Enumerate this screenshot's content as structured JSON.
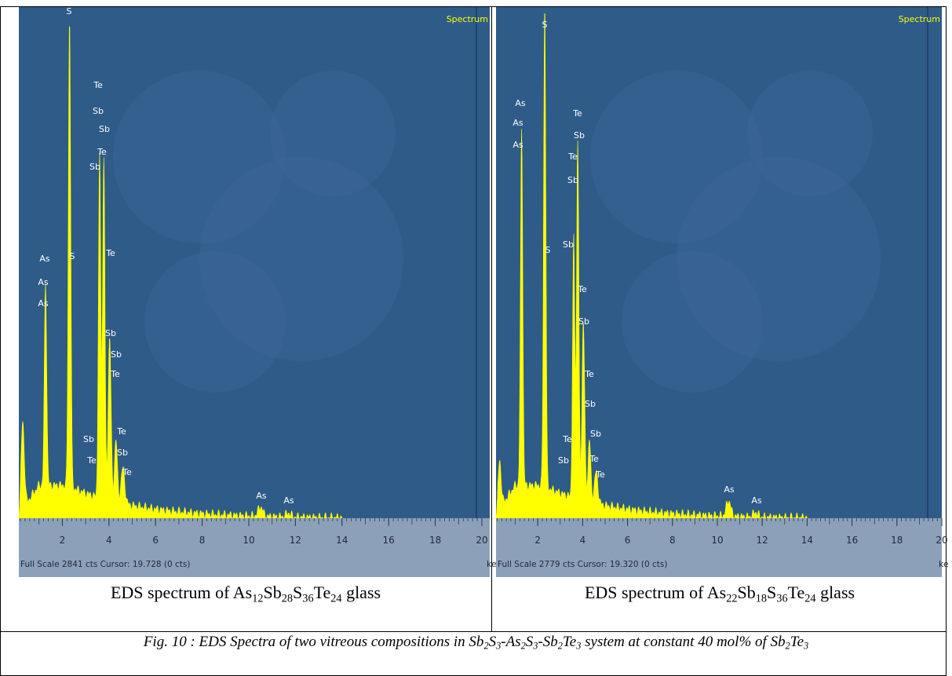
{
  "panels": [
    {
      "spectrum_label": "Spectrum",
      "x_ticks": [
        2,
        4,
        6,
        8,
        10,
        12,
        14,
        16,
        18,
        20
      ],
      "unit": "ke",
      "status": "Full Scale 2841 cts Cursor: 19.728  (0 cts)",
      "peak_labels": [
        "S",
        "Te",
        "Sb",
        "Sb",
        "Te",
        "Sb",
        "As",
        "As",
        "As",
        "S",
        "Te",
        "Sb",
        "Sb",
        "Te",
        "Sb",
        "Te",
        "Te",
        "Sb",
        "Te",
        "As",
        "As"
      ],
      "caption": [
        {
          "text": "EDS spectrum of As"
        },
        {
          "text": "12",
          "sub": true
        },
        {
          "text": "Sb"
        },
        {
          "text": "28",
          "sub": true
        },
        {
          "text": "S"
        },
        {
          "text": "36",
          "sub": true
        },
        {
          "text": "Te"
        },
        {
          "text": "24",
          "sub": true
        },
        {
          "text": " glass"
        }
      ]
    },
    {
      "spectrum_label": "Spectrum",
      "x_ticks": [
        2,
        4,
        6,
        8,
        10,
        12,
        14,
        16,
        18,
        20
      ],
      "unit": "ke",
      "status": "Full Scale 2779 cts Cursor: 19.320  (0 cts)",
      "peak_labels": [
        "S",
        "As",
        "As",
        "As",
        "Te",
        "Sb",
        "Te",
        "Sb",
        "Sb",
        "S",
        "Te",
        "Sb",
        "Te",
        "Sb",
        "Te",
        "Sb",
        "Sb",
        "Te",
        "Te",
        "As",
        "As"
      ],
      "caption": [
        {
          "text": "EDS spectrum of As"
        },
        {
          "text": "22",
          "sub": true
        },
        {
          "text": "Sb"
        },
        {
          "text": "18",
          "sub": true
        },
        {
          "text": "S"
        },
        {
          "text": "36",
          "sub": true
        },
        {
          "text": "Te"
        },
        {
          "text": "24",
          "sub": true
        },
        {
          "text": " glass"
        }
      ]
    }
  ],
  "figure_caption": [
    {
      "text": "Fig. 10 : EDS Spectra of two vitreous compositions in Sb"
    },
    {
      "text": "2",
      "sub": true
    },
    {
      "text": "S"
    },
    {
      "text": "3",
      "sub": true
    },
    {
      "text": "-As"
    },
    {
      "text": "2",
      "sub": true
    },
    {
      "text": "S"
    },
    {
      "text": "3",
      "sub": true
    },
    {
      "text": "-Sb"
    },
    {
      "text": "2",
      "sub": true
    },
    {
      "text": "Te"
    },
    {
      "text": "3",
      "sub": true
    },
    {
      "text": " system at constant 40 mol% of Sb"
    },
    {
      "text": "2",
      "sub": true
    },
    {
      "text": "Te"
    },
    {
      "text": "3",
      "sub": true
    }
  ]
}
